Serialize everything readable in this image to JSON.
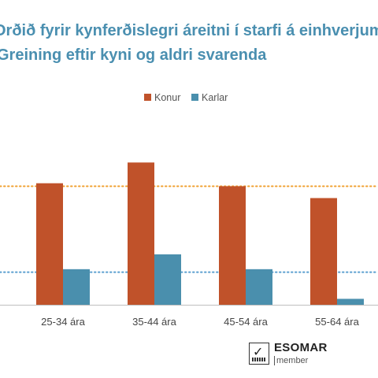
{
  "title": {
    "line1": "Orðið fyrir kynferðislegri áreitni í starfi á einhverjum tímapunkti",
    "line2": "Greining eftir kyni og aldri svarenda"
  },
  "colors": {
    "title": "#4a8fb0",
    "konur": "#c0522a",
    "karlar": "#4a8fad",
    "ref_orange": "#f0a030",
    "ref_blue": "#5a9fcf",
    "axis": "#bfbfbf"
  },
  "chart_data": {
    "type": "bar",
    "categories": [
      "25-34 ára",
      "35-44 ára",
      "45-54 ára",
      "55-64 ára"
    ],
    "series": [
      {
        "name": "Konur",
        "values": [
          41,
          48,
          40,
          36
        ]
      },
      {
        "name": "Karlar",
        "values": [
          12,
          17,
          12,
          2
        ]
      }
    ],
    "reference_lines": [
      {
        "value": 40,
        "color": "orange",
        "style": "dotted"
      },
      {
        "value": 11,
        "color": "blue",
        "style": "dotted"
      }
    ],
    "ylim": [
      0,
      55
    ],
    "legend": "top-center",
    "grid": false
  },
  "logo": {
    "name": "ESOMAR",
    "sub": "member"
  }
}
